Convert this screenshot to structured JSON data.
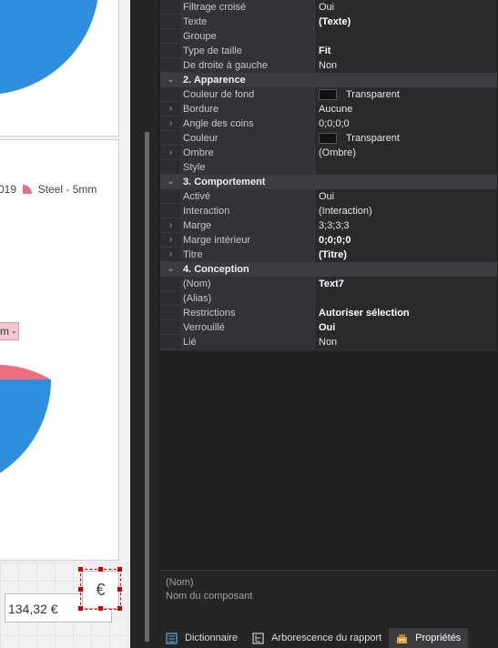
{
  "canvas": {
    "legend_partial_year": "019",
    "legend_series": "Steel - 5mm",
    "pie_label_partial": "m -",
    "amount_value": "134,32 €",
    "euro_symbol": "€",
    "colors": {
      "pie_blue": "#2f8fde",
      "pie_pink": "#ef6f7f"
    }
  },
  "properties": {
    "rows": [
      {
        "type": "prop",
        "gutter": "",
        "name": "Filtrage croisé",
        "value": "Oui",
        "bold": false
      },
      {
        "type": "prop",
        "gutter": "",
        "name": "Texte",
        "value": "(Texte)",
        "bold": true
      },
      {
        "type": "prop",
        "gutter": "",
        "name": "Groupe",
        "value": "",
        "bold": false
      },
      {
        "type": "prop",
        "gutter": "",
        "name": "Type de taille",
        "value": "Fit",
        "bold": true
      },
      {
        "type": "prop",
        "gutter": "",
        "name": "De droite à gauche",
        "value": "Non",
        "bold": false
      },
      {
        "type": "cat",
        "gutter": "⌄",
        "name": "2. Apparence"
      },
      {
        "type": "prop",
        "gutter": "",
        "name": "Couleur de fond",
        "value": "Transparent",
        "bold": false,
        "swatch": true
      },
      {
        "type": "prop",
        "gutter": "›",
        "name": "Bordure",
        "value": "Aucune",
        "bold": false
      },
      {
        "type": "prop",
        "gutter": "›",
        "name": "Angle des coins",
        "value": "0;0;0;0",
        "bold": false
      },
      {
        "type": "prop",
        "gutter": "",
        "name": "Couleur",
        "value": "Transparent",
        "bold": false,
        "swatch": true
      },
      {
        "type": "prop",
        "gutter": "›",
        "name": "Ombre",
        "value": "(Ombre)",
        "bold": false
      },
      {
        "type": "prop",
        "gutter": "",
        "name": "Style",
        "value": "",
        "bold": false
      },
      {
        "type": "cat",
        "gutter": "⌄",
        "name": "3. Comportement"
      },
      {
        "type": "prop",
        "gutter": "",
        "name": "Activé",
        "value": "Oui",
        "bold": false
      },
      {
        "type": "prop",
        "gutter": "",
        "name": "Interaction",
        "value": "(Interaction)",
        "bold": false
      },
      {
        "type": "prop",
        "gutter": "›",
        "name": "Marge",
        "value": "3;3;3;3",
        "bold": false
      },
      {
        "type": "prop",
        "gutter": "›",
        "name": "Marge intérieur",
        "value": "0;0;0;0",
        "bold": true
      },
      {
        "type": "prop",
        "gutter": "›",
        "name": "Titre",
        "value": "(Titre)",
        "bold": true
      },
      {
        "type": "cat",
        "gutter": "⌄",
        "name": "4. Conception"
      },
      {
        "type": "prop",
        "gutter": "",
        "name": "(Nom)",
        "value": "Text7",
        "bold": true
      },
      {
        "type": "prop",
        "gutter": "",
        "name": "(Alias)",
        "value": "",
        "bold": false
      },
      {
        "type": "prop",
        "gutter": "",
        "name": "Restrictions",
        "value": "Autoriser sélection",
        "bold": true
      },
      {
        "type": "prop",
        "gutter": "",
        "name": "Verrouillé",
        "value": "Oui",
        "bold": true
      },
      {
        "type": "prop",
        "gutter": "",
        "name": "Lié",
        "value": "Non",
        "bold": false
      }
    ],
    "description": {
      "title": "(Nom)",
      "text": "Nom du composant"
    }
  },
  "tabs": [
    {
      "label": "Dictionnaire",
      "icon": "dictionary-icon",
      "active": false
    },
    {
      "label": "Arborescence du rapport",
      "icon": "report-tree-icon",
      "active": false
    },
    {
      "label": "Propriétés",
      "icon": "properties-icon",
      "active": true
    }
  ]
}
